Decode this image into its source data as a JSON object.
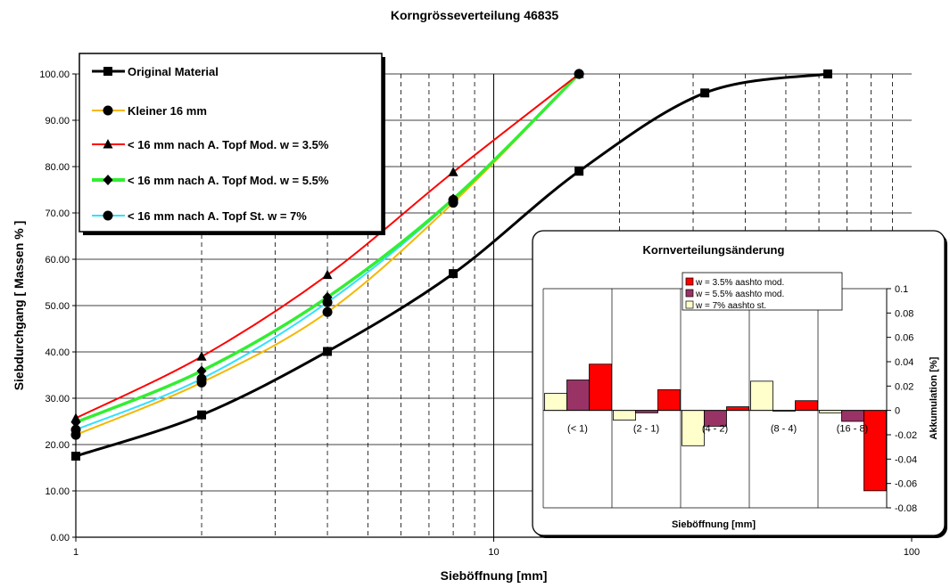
{
  "chart_data": [
    {
      "type": "line",
      "title": "Korngrösseverteilung 46835",
      "xlabel": "Sieböffnung [mm]",
      "ylabel": "Siebdurchgang [ Massen % ]",
      "xscale": "log",
      "xlim": [
        1,
        100
      ],
      "ylim": [
        0,
        100
      ],
      "xticks": [
        1,
        10,
        100
      ],
      "xtick_labels": [
        "1",
        "10",
        "100"
      ],
      "yticks": [
        0,
        10,
        20,
        30,
        40,
        50,
        60,
        70,
        80,
        90,
        100
      ],
      "ytick_labels": [
        "0.00",
        "10.00",
        "20.00",
        "30.00",
        "40.00",
        "50.00",
        "60.00",
        "70.00",
        "80.00",
        "90.00",
        "100.00"
      ],
      "grid": {
        "y_major": "solid",
        "x_minor": "dashed"
      },
      "legend_position": "top-left",
      "series": [
        {
          "name": "Original Material",
          "color": "#000000",
          "marker": "square",
          "x": [
            1,
            2,
            4,
            8,
            16,
            32,
            63
          ],
          "y": [
            17.5,
            26.4,
            40.1,
            56.9,
            79.0,
            95.9,
            100.0
          ]
        },
        {
          "name": "Kleiner 16 mm",
          "color": "#f5b800",
          "marker": "circle",
          "x": [
            1,
            2,
            4,
            8,
            16
          ],
          "y": [
            22.1,
            33.4,
            48.6,
            72.2,
            100.0
          ]
        },
        {
          "name": "< 16 mm nach A. Topf Mod. w = 3.5%",
          "color": "#ff0000",
          "marker": "triangle",
          "x": [
            1,
            2,
            4,
            8,
            16
          ],
          "y": [
            25.7,
            39.0,
            56.6,
            78.8,
            100.0
          ]
        },
        {
          "name": "< 16 mm nach A. Topf Mod. w = 5.5%",
          "color": "#33ee33",
          "marker": "diamond",
          "x": [
            1,
            2,
            4,
            8,
            16
          ],
          "y": [
            24.8,
            35.9,
            51.8,
            73.0,
            100.0
          ]
        },
        {
          "name": "< 16 mm nach A. Topf St. w = 7%",
          "color": "#33e0ff",
          "marker": "circle",
          "x": [
            1,
            2,
            4,
            8,
            16
          ],
          "y": [
            23.2,
            34.2,
            50.7,
            72.8,
            100.0
          ]
        }
      ]
    },
    {
      "type": "bar",
      "title": "Kornverteilungsänderung",
      "xlabel": "Sieböffnung [mm]",
      "ylabel": "Akkumulation [%]",
      "ylim": [
        -0.08,
        0.1
      ],
      "yticks": [
        -0.08,
        -0.06,
        -0.04,
        -0.02,
        0,
        0.02,
        0.04,
        0.06,
        0.08,
        0.1
      ],
      "ytick_labels": [
        "-0.08",
        "-0.06",
        "-0.04",
        "-0.02",
        "0",
        "0.02",
        "0.04",
        "0.06",
        "0.08",
        "0.1"
      ],
      "categories": [
        "(< 1)",
        "(2 - 1)",
        "(4 - 2)",
        "(8 - 4)",
        "(16 - 8)"
      ],
      "legend_position": "top",
      "series": [
        {
          "name": "w = 7% aashto st.",
          "color": "#ffffcc",
          "values": [
            0.014,
            -0.008,
            -0.029,
            0.024,
            -0.002
          ]
        },
        {
          "name": "w = 5.5% aashto mod.",
          "color": "#993366",
          "values": [
            0.025,
            -0.002,
            -0.013,
            0.0,
            -0.009
          ]
        },
        {
          "name": "w = 3.5% aashto mod.",
          "color": "#ff0000",
          "values": [
            0.038,
            0.017,
            0.003,
            0.008,
            -0.066
          ]
        }
      ]
    }
  ]
}
